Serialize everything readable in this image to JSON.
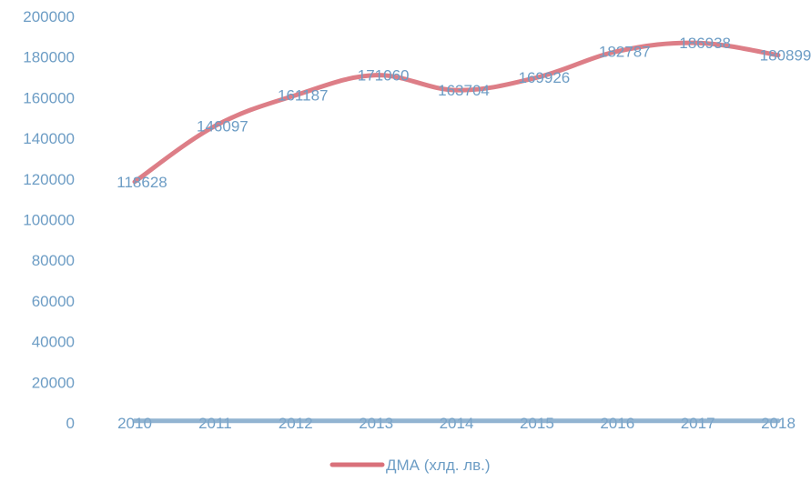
{
  "chart_data": {
    "type": "line",
    "x": [
      "2010",
      "2011",
      "2012",
      "2013",
      "2014",
      "2015",
      "2016",
      "2017",
      "2018"
    ],
    "series": [
      {
        "name": "ДМА (хлд. лв.)",
        "values": [
          118628,
          146097,
          161187,
          171060,
          163704,
          169926,
          182787,
          186938,
          180899
        ],
        "data_labels": [
          "118628",
          "146097",
          "161187",
          "171060",
          "163704",
          "169926",
          "182787",
          "186938",
          "180899"
        ],
        "color": "#d9707a"
      },
      {
        "values": [
          1000,
          1000,
          1000,
          1000,
          1000,
          1000,
          1000,
          1000,
          1000
        ],
        "color": "#7fa7c9"
      }
    ],
    "ylim": [
      0,
      200000
    ],
    "yticks": [
      "0",
      "20000",
      "40000",
      "60000",
      "80000",
      "100000",
      "120000",
      "140000",
      "160000",
      "180000",
      "200000"
    ],
    "title": "",
    "xlabel": "",
    "ylabel": "",
    "grid": false,
    "legend_position": "bottom",
    "tick_color": "#6d9dc5",
    "label_color": "#6d9dc5"
  }
}
